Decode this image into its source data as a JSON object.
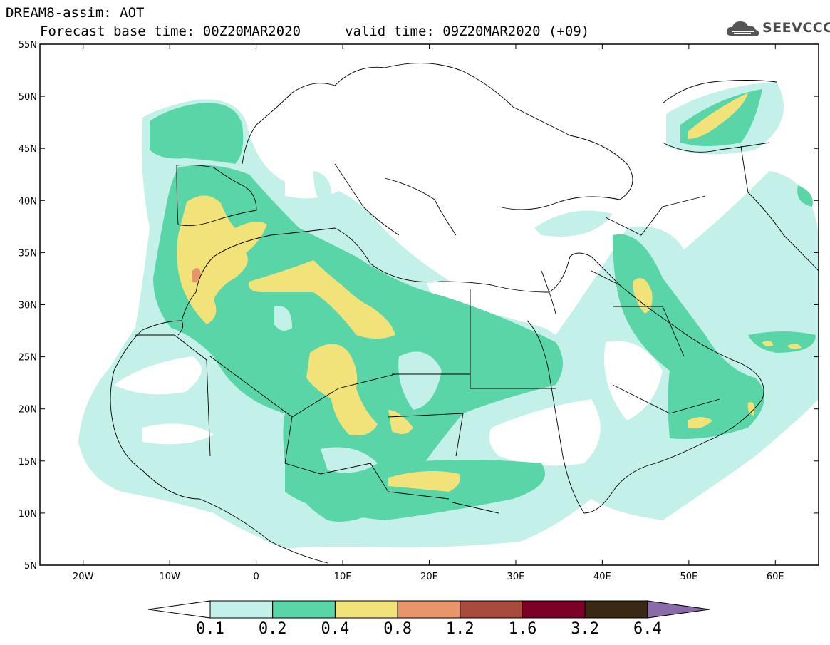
{
  "header": {
    "line1": "DREAM8-assim: AOT",
    "line2": "Forecast base time: 00Z20MAR2020",
    "line3": "valid time: 09Z20MAR2020 (+09)"
  },
  "logo": {
    "text": "SEEVCCC",
    "icon": "cloud-icon"
  },
  "map": {
    "lon_range": [
      -25,
      65
    ],
    "lat_range": [
      5,
      55
    ],
    "lat_ticks": [
      "55N",
      "50N",
      "45N",
      "40N",
      "35N",
      "30N",
      "25N",
      "20N",
      "15N",
      "10N",
      "5N"
    ],
    "lon_ticks": [
      "20W",
      "10W",
      "0",
      "10E",
      "20E",
      "30E",
      "40E",
      "50E",
      "60E"
    ]
  },
  "colorbar": {
    "labels": [
      "0.1",
      "0.2",
      "0.4",
      "0.8",
      "1.2",
      "1.6",
      "3.2",
      "6.4"
    ],
    "colors": [
      "#ffffff",
      "#c3f0e8",
      "#5ad5a8",
      "#f2e27a",
      "#e8956b",
      "#a84a3c",
      "#7a0028",
      "#3b2814",
      "#8a6aa8"
    ]
  }
}
